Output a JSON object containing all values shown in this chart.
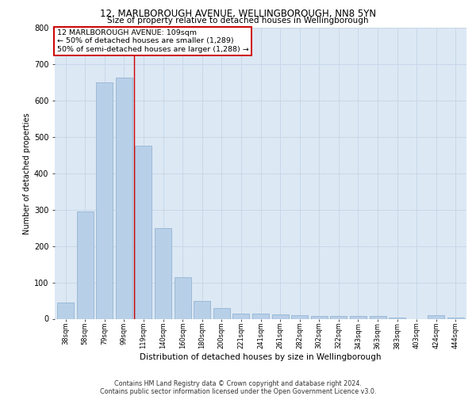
{
  "title1": "12, MARLBOROUGH AVENUE, WELLINGBOROUGH, NN8 5YN",
  "title2": "Size of property relative to detached houses in Wellingborough",
  "xlabel": "Distribution of detached houses by size in Wellingborough",
  "ylabel": "Number of detached properties",
  "categories": [
    "38sqm",
    "58sqm",
    "79sqm",
    "99sqm",
    "119sqm",
    "140sqm",
    "160sqm",
    "180sqm",
    "200sqm",
    "221sqm",
    "241sqm",
    "261sqm",
    "282sqm",
    "302sqm",
    "322sqm",
    "343sqm",
    "363sqm",
    "383sqm",
    "403sqm",
    "424sqm",
    "444sqm"
  ],
  "values": [
    45,
    295,
    650,
    662,
    475,
    250,
    115,
    50,
    30,
    15,
    15,
    12,
    10,
    8,
    8,
    8,
    7,
    3,
    0,
    10,
    3
  ],
  "bar_color": "#b8cfe8",
  "bar_edge_color": "#8aaecc",
  "red_line_index": 3.52,
  "annotation_line1": "12 MARLBOROUGH AVENUE: 109sqm",
  "annotation_line2": "← 50% of detached houses are smaller (1,289)",
  "annotation_line3": "50% of semi-detached houses are larger (1,288) →",
  "annotation_box_color": "#ffffff",
  "annotation_box_edge": "#cc0000",
  "grid_color": "#c8d8e8",
  "bg_color": "#dce8f4",
  "footer": "Contains HM Land Registry data © Crown copyright and database right 2024.\nContains public sector information licensed under the Open Government Licence v3.0.",
  "ylim": [
    0,
    800
  ],
  "yticks": [
    0,
    100,
    200,
    300,
    400,
    500,
    600,
    700,
    800
  ]
}
